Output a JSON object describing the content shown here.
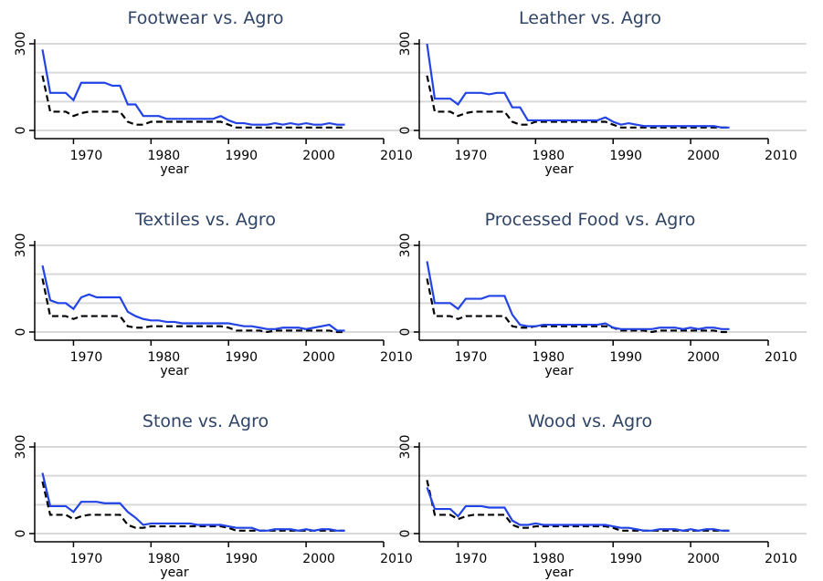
{
  "chart_data": [
    {
      "type": "line",
      "title": "Footwear vs. Agro",
      "xlabel": "year",
      "x": [
        1966,
        1967,
        1968,
        1969,
        1970,
        1971,
        1972,
        1973,
        1974,
        1975,
        1976,
        1977,
        1978,
        1979,
        1980,
        1981,
        1982,
        1983,
        1984,
        1985,
        1986,
        1987,
        1988,
        1989,
        1990,
        1991,
        1992,
        1993,
        1994,
        1995,
        1996,
        1997,
        1998,
        1999,
        2000,
        2001,
        2002,
        2003,
        2004,
        2005
      ],
      "xlim": [
        1965,
        2010
      ],
      "xticks": [
        1970,
        1980,
        1990,
        2000,
        2010
      ],
      "ylim": [
        0,
        300
      ],
      "yticks": [
        0,
        300
      ],
      "ygrid": [
        0,
        100,
        200,
        300
      ],
      "series": [
        {
          "color": "#2244e6",
          "dashed": false,
          "values": [
            280,
            130,
            130,
            130,
            105,
            165,
            165,
            165,
            165,
            155,
            155,
            90,
            90,
            50,
            50,
            50,
            40,
            40,
            40,
            40,
            40,
            40,
            40,
            50,
            35,
            25,
            25,
            20,
            20,
            20,
            25,
            20,
            25,
            20,
            25,
            20,
            20,
            25,
            20,
            20
          ]
        },
        {
          "color": "#000000",
          "dashed": true,
          "values": [
            190,
            65,
            65,
            65,
            50,
            60,
            65,
            65,
            65,
            65,
            65,
            30,
            20,
            20,
            30,
            30,
            30,
            30,
            30,
            30,
            30,
            30,
            30,
            30,
            20,
            10,
            10,
            10,
            10,
            10,
            10,
            10,
            10,
            10,
            10,
            10,
            10,
            10,
            10,
            10
          ]
        }
      ]
    },
    {
      "type": "line",
      "title": "Leather vs. Agro",
      "xlabel": "year",
      "x": [
        1966,
        1967,
        1968,
        1969,
        1970,
        1971,
        1972,
        1973,
        1974,
        1975,
        1976,
        1977,
        1978,
        1979,
        1980,
        1981,
        1982,
        1983,
        1984,
        1985,
        1986,
        1987,
        1988,
        1989,
        1990,
        1991,
        1992,
        1993,
        1994,
        1995,
        1996,
        1997,
        1998,
        1999,
        2000,
        2001,
        2002,
        2003,
        2004,
        2005
      ],
      "xlim": [
        1965,
        2010
      ],
      "xticks": [
        1970,
        1980,
        1990,
        2000,
        2010
      ],
      "ylim": [
        0,
        300
      ],
      "yticks": [
        0,
        300
      ],
      "ygrid": [
        0,
        100,
        200,
        300
      ],
      "series": [
        {
          "color": "#2244e6",
          "dashed": false,
          "values": [
            300,
            110,
            110,
            110,
            90,
            130,
            130,
            130,
            125,
            130,
            130,
            80,
            80,
            35,
            35,
            35,
            35,
            35,
            35,
            35,
            35,
            35,
            35,
            45,
            30,
            20,
            25,
            20,
            15,
            15,
            15,
            15,
            15,
            15,
            15,
            15,
            15,
            15,
            10,
            10
          ]
        },
        {
          "color": "#000000",
          "dashed": true,
          "values": [
            190,
            65,
            65,
            65,
            50,
            60,
            65,
            65,
            65,
            65,
            65,
            30,
            20,
            20,
            30,
            30,
            30,
            30,
            30,
            30,
            30,
            30,
            30,
            30,
            20,
            10,
            10,
            10,
            10,
            10,
            10,
            10,
            10,
            10,
            10,
            10,
            10,
            10,
            10,
            10
          ]
        }
      ]
    },
    {
      "type": "line",
      "title": "Textiles vs. Agro",
      "xlabel": "year",
      "x": [
        1966,
        1967,
        1968,
        1969,
        1970,
        1971,
        1972,
        1973,
        1974,
        1975,
        1976,
        1977,
        1978,
        1979,
        1980,
        1981,
        1982,
        1983,
        1984,
        1985,
        1986,
        1987,
        1988,
        1989,
        1990,
        1991,
        1992,
        1993,
        1994,
        1995,
        1996,
        1997,
        1998,
        1999,
        2000,
        2001,
        2002,
        2003,
        2004,
        2005
      ],
      "xlim": [
        1965,
        2010
      ],
      "xticks": [
        1970,
        1980,
        1990,
        2000,
        2010
      ],
      "ylim": [
        0,
        300
      ],
      "yticks": [
        0,
        300
      ],
      "ygrid": [
        0,
        100,
        200,
        300
      ],
      "series": [
        {
          "color": "#2244e6",
          "dashed": false,
          "values": [
            230,
            110,
            100,
            100,
            80,
            120,
            130,
            120,
            120,
            120,
            120,
            70,
            55,
            45,
            40,
            40,
            35,
            35,
            30,
            30,
            30,
            30,
            30,
            30,
            30,
            25,
            20,
            20,
            15,
            10,
            10,
            15,
            15,
            15,
            10,
            15,
            20,
            25,
            5,
            5
          ]
        },
        {
          "color": "#000000",
          "dashed": true,
          "values": [
            185,
            55,
            55,
            55,
            45,
            55,
            55,
            55,
            55,
            55,
            55,
            20,
            15,
            15,
            20,
            20,
            20,
            20,
            20,
            20,
            20,
            20,
            20,
            20,
            15,
            5,
            5,
            5,
            5,
            0,
            5,
            5,
            5,
            5,
            5,
            5,
            5,
            5,
            0,
            0
          ]
        }
      ]
    },
    {
      "type": "line",
      "title": "Processed Food vs. Agro",
      "xlabel": "year",
      "x": [
        1966,
        1967,
        1968,
        1969,
        1970,
        1971,
        1972,
        1973,
        1974,
        1975,
        1976,
        1977,
        1978,
        1979,
        1980,
        1981,
        1982,
        1983,
        1984,
        1985,
        1986,
        1987,
        1988,
        1989,
        1990,
        1991,
        1992,
        1993,
        1994,
        1995,
        1996,
        1997,
        1998,
        1999,
        2000,
        2001,
        2002,
        2003,
        2004,
        2005
      ],
      "xlim": [
        1965,
        2010
      ],
      "xticks": [
        1970,
        1980,
        1990,
        2000,
        2010
      ],
      "ylim": [
        0,
        300
      ],
      "yticks": [
        0,
        300
      ],
      "ygrid": [
        0,
        100,
        200,
        300
      ],
      "series": [
        {
          "color": "#2244e6",
          "dashed": false,
          "values": [
            245,
            100,
            100,
            100,
            80,
            115,
            115,
            115,
            125,
            125,
            125,
            60,
            25,
            20,
            20,
            25,
            25,
            25,
            25,
            25,
            25,
            25,
            25,
            30,
            15,
            10,
            10,
            10,
            10,
            10,
            15,
            15,
            15,
            10,
            15,
            10,
            15,
            15,
            10,
            10
          ]
        },
        {
          "color": "#000000",
          "dashed": true,
          "values": [
            185,
            55,
            55,
            55,
            45,
            55,
            55,
            55,
            55,
            55,
            55,
            20,
            15,
            15,
            20,
            20,
            20,
            20,
            20,
            20,
            20,
            20,
            20,
            20,
            15,
            5,
            5,
            5,
            5,
            0,
            5,
            5,
            5,
            5,
            5,
            5,
            5,
            5,
            0,
            0
          ]
        }
      ]
    },
    {
      "type": "line",
      "title": "Stone vs. Agro",
      "xlabel": "year",
      "x": [
        1966,
        1967,
        1968,
        1969,
        1970,
        1971,
        1972,
        1973,
        1974,
        1975,
        1976,
        1977,
        1978,
        1979,
        1980,
        1981,
        1982,
        1983,
        1984,
        1985,
        1986,
        1987,
        1988,
        1989,
        1990,
        1991,
        1992,
        1993,
        1994,
        1995,
        1996,
        1997,
        1998,
        1999,
        2000,
        2001,
        2002,
        2003,
        2004,
        2005
      ],
      "xlim": [
        1965,
        2010
      ],
      "xticks": [
        1970,
        1980,
        1990,
        2000,
        2010
      ],
      "ylim": [
        0,
        300
      ],
      "yticks": [
        0,
        300
      ],
      "ygrid": [
        0,
        100,
        200,
        300
      ],
      "series": [
        {
          "color": "#2244e6",
          "dashed": false,
          "values": [
            210,
            95,
            95,
            95,
            75,
            110,
            110,
            110,
            105,
            105,
            105,
            75,
            55,
            30,
            35,
            35,
            35,
            35,
            35,
            35,
            30,
            30,
            30,
            30,
            25,
            20,
            20,
            20,
            10,
            10,
            15,
            15,
            15,
            10,
            15,
            10,
            15,
            15,
            10,
            10
          ]
        },
        {
          "color": "#000000",
          "dashed": true,
          "values": [
            180,
            65,
            65,
            65,
            50,
            60,
            65,
            65,
            65,
            65,
            65,
            30,
            20,
            20,
            25,
            25,
            25,
            25,
            25,
            25,
            25,
            25,
            25,
            25,
            20,
            10,
            10,
            10,
            10,
            10,
            10,
            10,
            10,
            10,
            10,
            10,
            10,
            10,
            10,
            10
          ]
        }
      ]
    },
    {
      "type": "line",
      "title": "Wood vs. Agro",
      "xlabel": "year",
      "x": [
        1966,
        1967,
        1968,
        1969,
        1970,
        1971,
        1972,
        1973,
        1974,
        1975,
        1976,
        1977,
        1978,
        1979,
        1980,
        1981,
        1982,
        1983,
        1984,
        1985,
        1986,
        1987,
        1988,
        1989,
        1990,
        1991,
        1992,
        1993,
        1994,
        1995,
        1996,
        1997,
        1998,
        1999,
        2000,
        2001,
        2002,
        2003,
        2004,
        2005
      ],
      "xlim": [
        1965,
        2010
      ],
      "xticks": [
        1970,
        1980,
        1990,
        2000,
        2010
      ],
      "ylim": [
        0,
        300
      ],
      "yticks": [
        0,
        300
      ],
      "ygrid": [
        0,
        100,
        200,
        300
      ],
      "series": [
        {
          "color": "#2244e6",
          "dashed": false,
          "values": [
            160,
            85,
            85,
            85,
            60,
            95,
            95,
            95,
            90,
            90,
            90,
            45,
            30,
            30,
            35,
            30,
            30,
            30,
            30,
            30,
            30,
            30,
            30,
            30,
            25,
            20,
            20,
            15,
            10,
            10,
            15,
            15,
            15,
            10,
            15,
            10,
            15,
            15,
            10,
            10
          ]
        },
        {
          "color": "#000000",
          "dashed": true,
          "values": [
            185,
            65,
            65,
            65,
            50,
            60,
            65,
            65,
            65,
            65,
            65,
            30,
            20,
            20,
            25,
            25,
            25,
            25,
            25,
            25,
            25,
            25,
            25,
            25,
            20,
            10,
            10,
            10,
            10,
            10,
            10,
            10,
            10,
            10,
            10,
            10,
            10,
            10,
            10,
            10
          ]
        }
      ]
    }
  ]
}
